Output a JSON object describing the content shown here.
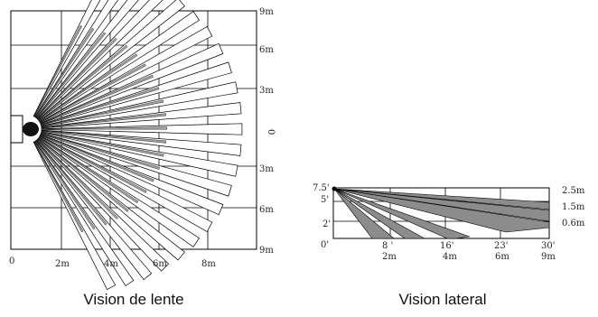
{
  "top_view": {
    "caption": "Vision de lente",
    "right_labels": [
      "9m",
      "6m",
      "3m",
      "0",
      "3m",
      "6m",
      "9m"
    ],
    "bottom_labels": [
      "0",
      "2m",
      "4m",
      "6m",
      "8m"
    ]
  },
  "side_view": {
    "caption": "Vision lateral",
    "left_labels": [
      "7.5'",
      "5'",
      "2'",
      "0'"
    ],
    "right_labels": [
      "2.5m",
      "1.5m",
      "0.6m"
    ],
    "bottom_feet": [
      "8 '",
      "16'",
      "23'",
      "30'"
    ],
    "bottom_meters": [
      "2m",
      "4m",
      "6m",
      "9m"
    ]
  },
  "colors": {
    "beam_fill": "#ffffff",
    "beam_shade": "#a8a8a8",
    "side_shade": "#8c8c8c",
    "line": "#000000"
  }
}
